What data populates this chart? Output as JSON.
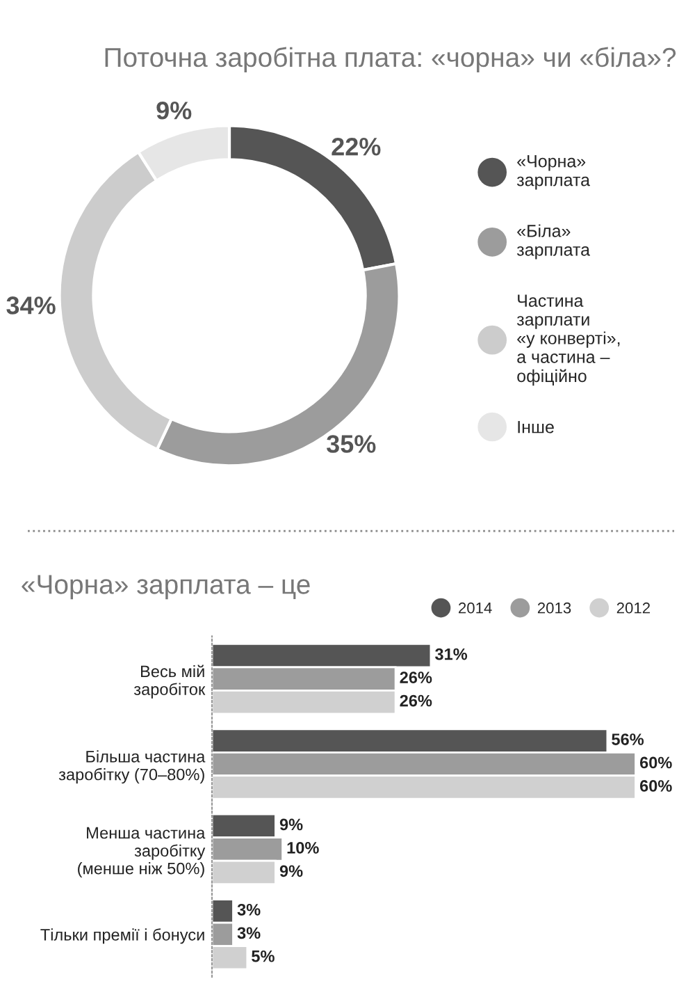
{
  "chart_data": [
    {
      "type": "donut",
      "title": "Поточна заробітна плата: «чорна» чи «біла»?",
      "categories": [
        "«Чорна»\nзарплата",
        "«Біла»\nзарплата",
        "Частина\nзарплати\n«у конверті»,\nа частина –\nофіційно",
        "Інше"
      ],
      "values": [
        22,
        35,
        34,
        9
      ],
      "value_labels": [
        "22%",
        "35%",
        "34%",
        "9%"
      ],
      "colors": [
        "#555555",
        "#9c9c9c",
        "#cccccc",
        "#e6e6e6"
      ],
      "legend": "right"
    },
    {
      "type": "bar",
      "orientation": "horizontal",
      "title": "«Чорна» зарплата – це",
      "categories": [
        "Весь мій\nзаробіток",
        "Більша частина\nзаробітку (70–80%)",
        "Менша частина\nзаробітку\n(менше ніж 50%)",
        "Тільки премії і бонуси"
      ],
      "series": [
        {
          "name": "2014",
          "color": "#555555",
          "values": [
            31,
            56,
            9,
            3
          ],
          "value_labels": [
            "31%",
            "56%",
            "9%",
            "3%"
          ]
        },
        {
          "name": "2013",
          "color": "#9c9c9c",
          "values": [
            26,
            60,
            10,
            3
          ],
          "value_labels": [
            "26%",
            "60%",
            "10%",
            "3%"
          ]
        },
        {
          "name": "2012",
          "color": "#d0d0d0",
          "values": [
            26,
            60,
            9,
            5
          ],
          "value_labels": [
            "26%",
            "60%",
            "9%",
            "5%"
          ]
        }
      ],
      "legend": "top right"
    }
  ]
}
